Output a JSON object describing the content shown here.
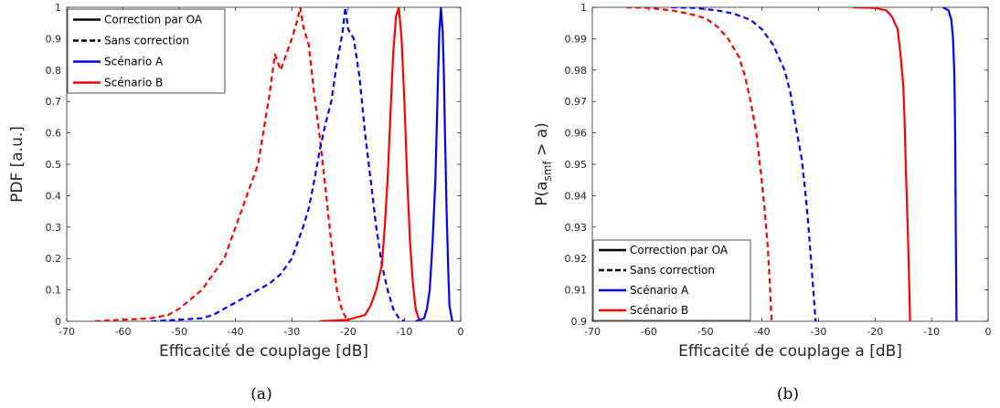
{
  "colors": {
    "blue": "#0000ff",
    "red": "#ff0000",
    "axis": "#262626",
    "black": "#000000"
  },
  "chart_data": [
    {
      "type": "line",
      "caption": "(a)",
      "xlabel": "Efficacité de couplage [dB]",
      "ylabel": "PDF [a.u.]",
      "xlim": [
        -70,
        0
      ],
      "ylim": [
        0,
        1
      ],
      "xticks": [
        "-70",
        "-60",
        "-50",
        "-40",
        "-30",
        "-20",
        "-10",
        "0"
      ],
      "yticks": [
        "0",
        "0.1",
        "0.2",
        "0.3",
        "0.4",
        "0.5",
        "0.6",
        "0.7",
        "0.8",
        "0.9",
        "1"
      ],
      "legend_position": "top-left",
      "legend": [
        {
          "label": "Correction par OA",
          "color": "#000000",
          "style": "solid"
        },
        {
          "label": "Sans correction",
          "color": "#000000",
          "style": "dashed"
        },
        {
          "label": "Scénario A",
          "color": "#0000ff",
          "style": "solid"
        },
        {
          "label": "Scénario B",
          "color": "#ff0000",
          "style": "solid"
        }
      ],
      "series": [
        {
          "color": "#ff0000",
          "style": "dashed",
          "x": [
            -65,
            -60,
            -55,
            -52,
            -50,
            -48,
            -46,
            -44,
            -42,
            -40,
            -38,
            -36,
            -34,
            -33,
            -32,
            -31,
            -30,
            -29,
            -28.5,
            -28,
            -27,
            -26,
            -25.5,
            -25,
            -24,
            -23,
            -22,
            -21,
            -20
          ],
          "y": [
            0,
            0.005,
            0.01,
            0.02,
            0.04,
            0.07,
            0.1,
            0.15,
            0.2,
            0.3,
            0.4,
            0.5,
            0.72,
            0.85,
            0.8,
            0.85,
            0.9,
            0.96,
            1.0,
            0.94,
            0.88,
            0.72,
            0.65,
            0.58,
            0.42,
            0.25,
            0.1,
            0.03,
            0
          ]
        },
        {
          "color": "#0000ff",
          "style": "dashed",
          "x": [
            -55,
            -50,
            -46,
            -44,
            -42,
            -40,
            -38,
            -36,
            -34,
            -32,
            -30,
            -28,
            -27,
            -26,
            -25,
            -24,
            -23,
            -22,
            -21,
            -20.5,
            -20,
            -19,
            -18,
            -17,
            -16,
            -15,
            -14,
            -13,
            -12,
            -11,
            -10
          ],
          "y": [
            0,
            0.005,
            0.01,
            0.02,
            0.04,
            0.06,
            0.08,
            0.1,
            0.12,
            0.15,
            0.2,
            0.3,
            0.36,
            0.45,
            0.55,
            0.63,
            0.7,
            0.82,
            0.92,
            1.0,
            0.93,
            0.9,
            0.78,
            0.6,
            0.45,
            0.3,
            0.18,
            0.1,
            0.04,
            0.01,
            0
          ]
        },
        {
          "color": "#ff0000",
          "style": "solid",
          "x": [
            -25,
            -20,
            -17,
            -16,
            -15,
            -14,
            -13.5,
            -13,
            -12.5,
            -12,
            -11.5,
            -11,
            -10.5,
            -10,
            -9.5,
            -9,
            -8.5,
            -8,
            -7.5,
            -7
          ],
          "y": [
            0,
            0.005,
            0.02,
            0.05,
            0.1,
            0.18,
            0.3,
            0.45,
            0.65,
            0.85,
            0.97,
            1.0,
            0.9,
            0.7,
            0.45,
            0.25,
            0.12,
            0.04,
            0.01,
            0
          ]
        },
        {
          "color": "#0000ff",
          "style": "solid",
          "x": [
            -8,
            -6.5,
            -6,
            -5.5,
            -5,
            -4.5,
            -4.2,
            -4,
            -3.8,
            -3.5,
            -3.2,
            -3,
            -2.8,
            -2.5,
            -2.2,
            -2,
            -1.5
          ],
          "y": [
            0,
            0.01,
            0.04,
            0.1,
            0.25,
            0.45,
            0.65,
            0.8,
            0.92,
            1.0,
            0.92,
            0.8,
            0.6,
            0.35,
            0.15,
            0.05,
            0
          ]
        }
      ]
    },
    {
      "type": "line",
      "caption": "(b)",
      "xlabel": "Efficacité de couplage a [dB]",
      "ylabel_parts": {
        "pre": "P(a",
        "sub": "smf",
        "post": " > a)"
      },
      "xlim": [
        -70,
        0
      ],
      "ylim": [
        0.9,
        1
      ],
      "xticks": [
        "-70",
        "-60",
        "-50",
        "-40",
        "-30",
        "-20",
        "-10",
        "0"
      ],
      "yticks": [
        "0.9",
        "0.91",
        "0.92",
        "0.93",
        "0.94",
        "0.95",
        "0.96",
        "0.97",
        "0.98",
        "0.99",
        "1"
      ],
      "legend_position": "bottom-left",
      "legend": [
        {
          "label": "Correction par OA",
          "color": "#000000",
          "style": "solid"
        },
        {
          "label": "Sans correction",
          "color": "#000000",
          "style": "dashed"
        },
        {
          "label": "Scénario A",
          "color": "#0000ff",
          "style": "solid"
        },
        {
          "label": "Scénario B",
          "color": "#ff0000",
          "style": "solid"
        }
      ],
      "series": [
        {
          "color": "#ff0000",
          "style": "dashed",
          "x": [
            -64,
            -60,
            -56,
            -53,
            -50,
            -48,
            -46,
            -44,
            -43,
            -42,
            -41,
            -40.5,
            -40,
            -39.5,
            -39,
            -38.6,
            -38.3
          ],
          "y": [
            1.0,
            0.9998,
            0.999,
            0.998,
            0.9965,
            0.994,
            0.99,
            0.984,
            0.978,
            0.97,
            0.96,
            0.952,
            0.944,
            0.935,
            0.924,
            0.912,
            0.9
          ]
        },
        {
          "color": "#0000ff",
          "style": "dashed",
          "x": [
            -56,
            -52,
            -48,
            -45,
            -42,
            -40,
            -38,
            -36,
            -35,
            -34,
            -33,
            -32.5,
            -32,
            -31.5,
            -31,
            -30.5
          ],
          "y": [
            1.0,
            0.9998,
            0.999,
            0.998,
            0.996,
            0.993,
            0.988,
            0.98,
            0.973,
            0.962,
            0.952,
            0.944,
            0.935,
            0.924,
            0.912,
            0.9
          ]
        },
        {
          "color": "#ff0000",
          "style": "solid",
          "x": [
            -24,
            -20,
            -18,
            -17,
            -16,
            -15.5,
            -15,
            -14.8,
            -14.6,
            -14.4,
            -14.2,
            -14.0,
            -13.9,
            -13.8
          ],
          "y": [
            1.0,
            0.9998,
            0.999,
            0.997,
            0.993,
            0.985,
            0.975,
            0.965,
            0.952,
            0.94,
            0.928,
            0.915,
            0.908,
            0.9
          ]
        },
        {
          "color": "#0000ff",
          "style": "solid",
          "x": [
            -8,
            -7,
            -6.5,
            -6.2,
            -6,
            -5.9,
            -5.8,
            -5.75,
            -5.7,
            -5.65,
            -5.6
          ],
          "y": [
            1.0,
            0.999,
            0.996,
            0.99,
            0.98,
            0.97,
            0.955,
            0.94,
            0.925,
            0.912,
            0.9
          ]
        }
      ]
    }
  ]
}
